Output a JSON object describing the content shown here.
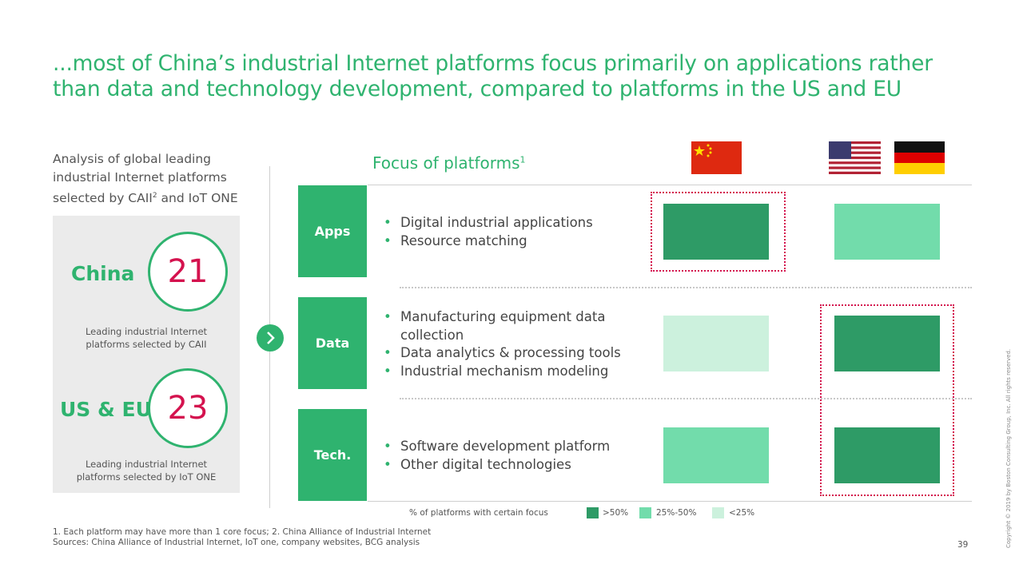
{
  "title": "...most of China’s industrial Internet platforms focus primarily on applications rather than data and technology development, compared to platforms in the US and EU",
  "intro": {
    "line1": "Analysis of global leading",
    "line2": "industrial Internet platforms",
    "line3_pre": "selected by CAII",
    "line3_sup": "2",
    "line3_post": " and IoT ONE"
  },
  "regions": [
    {
      "label": "China",
      "count": "21",
      "caption_line1": "Leading industrial Internet",
      "caption_line2": "platforms selected by CAII"
    },
    {
      "label": "US & EU",
      "count": "23",
      "caption_line1": "Leading industrial Internet",
      "caption_line2": "platforms selected by IoT ONE"
    }
  ],
  "focus_title": "Focus of platforms",
  "focus_title_sup": "1",
  "rows": [
    {
      "label": "Apps",
      "bullets": [
        "Digital industrial applications",
        "Resource matching"
      ]
    },
    {
      "label": "Data",
      "bullets": [
        "Manufacturing equipment data",
        "collection",
        "Data analytics & processing tools",
        "Industrial mechanism modeling"
      ]
    },
    {
      "label": "Tech.",
      "bullets": [
        "Software development platform",
        "Other digital technologies"
      ]
    }
  ],
  "matrix": {
    "columns": [
      "china-flag",
      "us-flag",
      "germany-flag"
    ],
    "china": [
      "high",
      "low",
      "medium"
    ],
    "us_eu": [
      "medium",
      "high",
      "high"
    ],
    "highlight_china_row": "Apps",
    "highlight_us_eu_rows": [
      "Data",
      "Tech."
    ]
  },
  "colors": {
    "high": "#2e9b66",
    "medium": "#72dcab",
    "low": "#ccf1dd",
    "accent": "#2fb36f",
    "highlight": "#d4124e"
  },
  "legend": {
    "label": "% of platforms with certain focus",
    "items": [
      {
        "label": ">50%",
        "level": "high"
      },
      {
        "label": "25%-50%",
        "level": "medium"
      },
      {
        "label": "<25%",
        "level": "low"
      }
    ]
  },
  "footnotes": {
    "line1": "1. Each platform may have more than 1 core focus; 2. China Alliance of Industrial Internet",
    "line2": "Sources: China Alliance of Industrial Internet, IoT one, company websites, BCG analysis"
  },
  "page_number": "39",
  "copyright": "Copyright © 2019 by Boston Consulting Group, Inc. All rights reserved."
}
